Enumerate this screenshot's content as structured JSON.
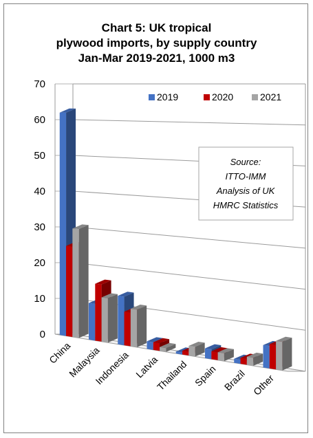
{
  "chart_data": {
    "type": "bar",
    "title_lines": [
      "Chart 5: UK tropical",
      "plywood imports, by supply country",
      "Jan-Mar 2019-2021, 1000 m3"
    ],
    "categories": [
      "China",
      "Malaysia",
      "Indonesia",
      "Latvia",
      "Thailand",
      "Spain",
      "Brazil",
      "Other"
    ],
    "series": [
      {
        "name": "2019",
        "color": "#4472C4",
        "values": [
          62,
          10,
          13,
          2,
          0.5,
          2.5,
          1,
          5.5
        ]
      },
      {
        "name": "2020",
        "color": "#C00000",
        "values": [
          25,
          15.5,
          9,
          2,
          1,
          2,
          1.5,
          6
        ]
      },
      {
        "name": "2021",
        "color": "#A5A5A5",
        "values": [
          30,
          12,
          10,
          1,
          2.5,
          2,
          2,
          7
        ]
      }
    ],
    "ylim": [
      0,
      70
    ],
    "yticks": [
      "0",
      "10",
      "20",
      "30",
      "40",
      "50",
      "60",
      "70"
    ],
    "grid": true,
    "legend_position": "top-right",
    "annotation_lines": [
      "Source:",
      "ITTO-IMM",
      "Analysis of UK",
      "HMRC Statistics"
    ]
  }
}
